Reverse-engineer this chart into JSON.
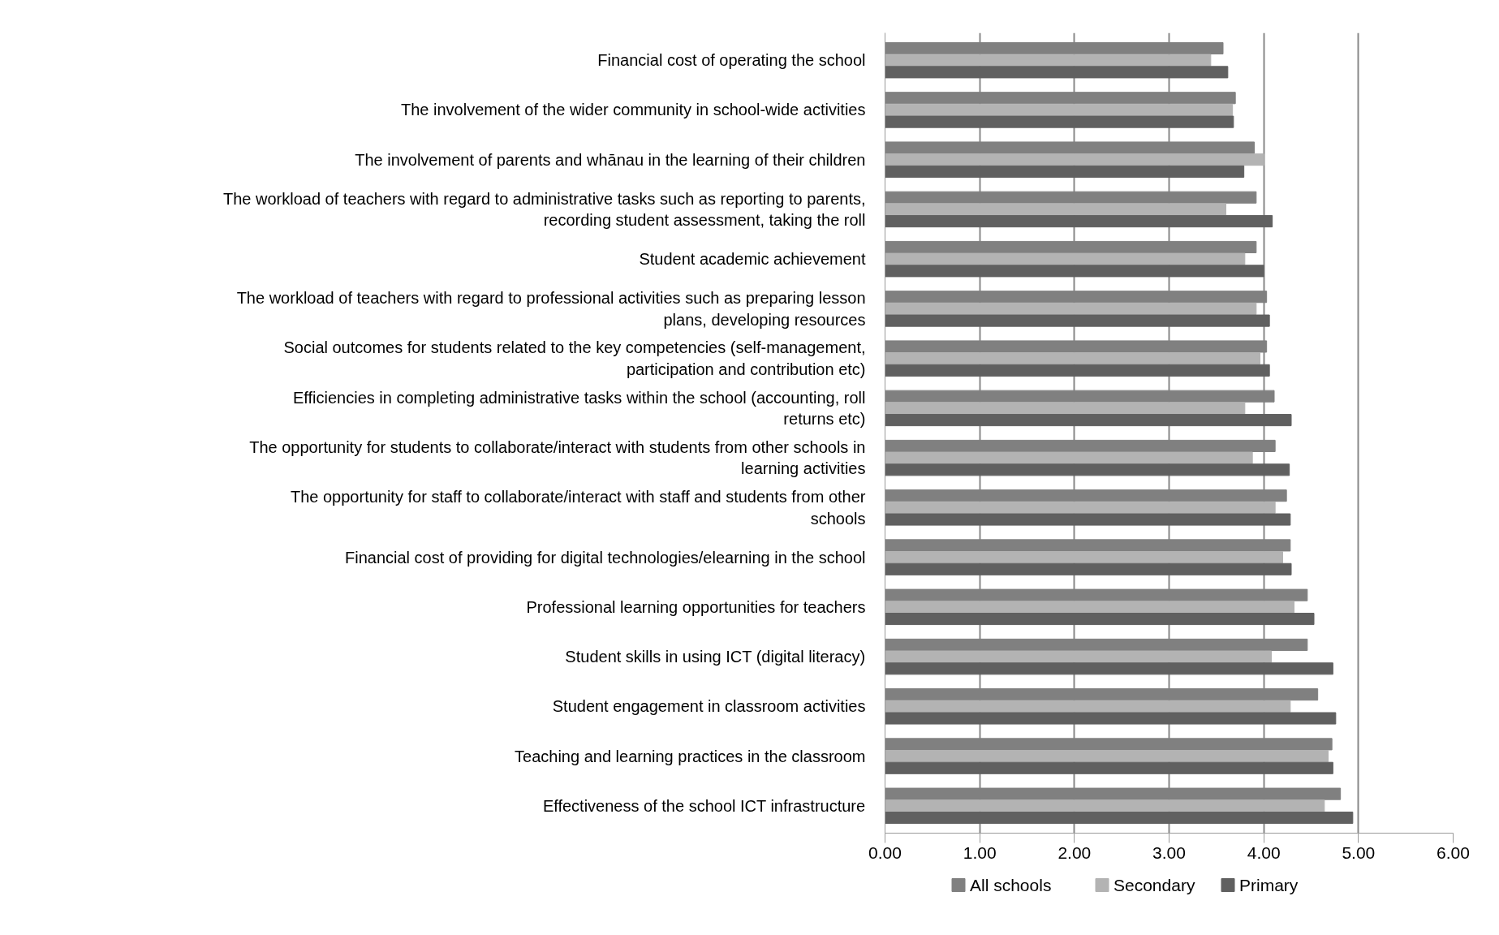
{
  "chart_data": {
    "type": "bar",
    "orientation": "horizontal",
    "categories": [
      "Financial cost of operating the school",
      "The involvement of the wider community in school-wide activities",
      "The involvement of parents and whānau in the learning of their children",
      "The workload of teachers with regard to administrative tasks such as reporting to parents, recording student assessment, taking the roll",
      "Student academic achievement",
      "The workload of teachers with regard to professional activities such as preparing lesson plans, developing resources",
      "Social outcomes for students related to the key competencies (self-management, participation and contribution etc)",
      "Efficiencies in completing administrative tasks within the school (accounting, roll returns etc)",
      "The opportunity for students to collaborate/interact with students from other schools in learning activities",
      "The opportunity for staff to collaborate/interact with staff and students from other schools",
      "Financial cost of providing for digital technologies/elearning in the school",
      "Professional learning opportunities for teachers",
      "Student skills in using ICT (digital literacy)",
      "Student engagement in classroom activities",
      "Teaching and learning practices in the classroom",
      "Effectiveness of the school ICT infrastructure"
    ],
    "series": [
      {
        "name": "All schools",
        "color": "#808080",
        "values": [
          3.57,
          3.7,
          3.9,
          3.92,
          3.92,
          4.03,
          4.03,
          4.11,
          4.12,
          4.24,
          4.28,
          4.46,
          4.46,
          4.57,
          4.72,
          4.81
        ]
      },
      {
        "name": "Secondary",
        "color": "#b3b3b3",
        "values": [
          3.44,
          3.67,
          4.0,
          3.6,
          3.8,
          3.92,
          3.96,
          3.8,
          3.88,
          4.12,
          4.2,
          4.32,
          4.08,
          4.28,
          4.68,
          4.64
        ]
      },
      {
        "name": "Primary",
        "color": "#606060",
        "values": [
          3.62,
          3.68,
          3.79,
          4.09,
          4.0,
          4.06,
          4.06,
          4.29,
          4.27,
          4.28,
          4.29,
          4.53,
          4.73,
          4.76,
          4.73,
          4.94
        ]
      }
    ],
    "xlim": [
      0,
      6
    ],
    "xticks": [
      {
        "value": 0,
        "label": "0.00"
      },
      {
        "value": 1,
        "label": "1.00"
      },
      {
        "value": 2,
        "label": "2.00"
      },
      {
        "value": 3,
        "label": "3.00"
      },
      {
        "value": 4,
        "label": "4.00"
      },
      {
        "value": 5,
        "label": "5.00"
      },
      {
        "value": 6,
        "label": "6.00"
      }
    ],
    "grid": "x",
    "legend": "bottom"
  }
}
